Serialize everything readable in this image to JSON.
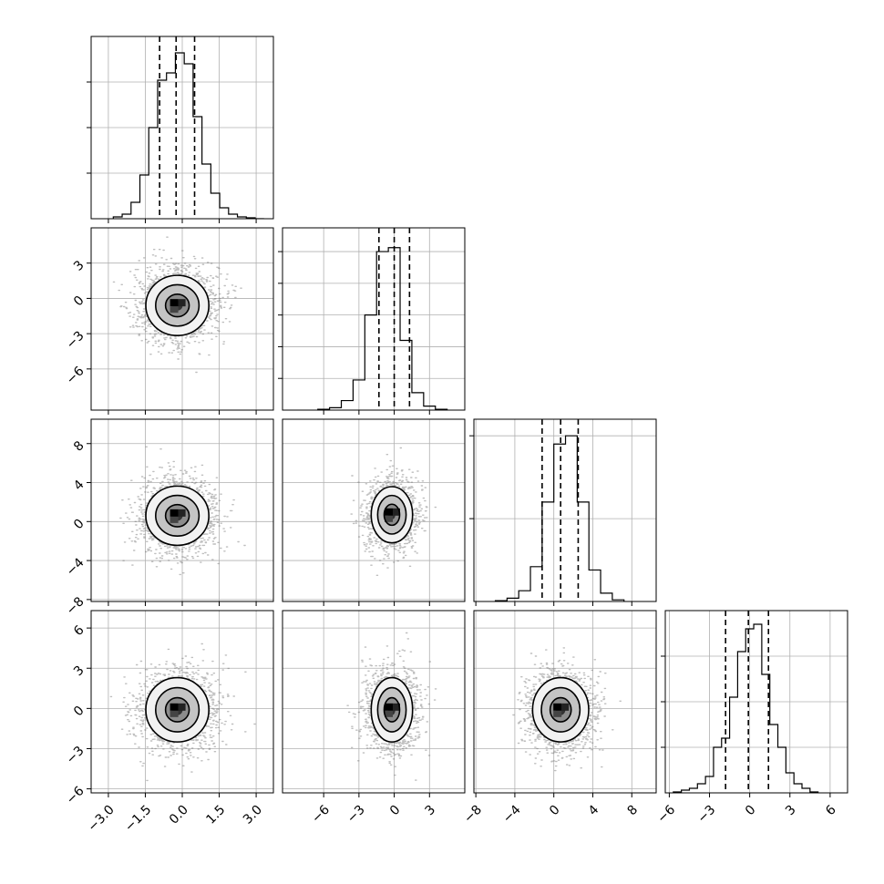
{
  "chart_data": {
    "type": "corner",
    "n_params": 4,
    "grid": true,
    "parameters": [
      {
        "range": [
          -3.7,
          3.7
        ],
        "ticks": [
          -3.0,
          -1.5,
          0.0,
          1.5,
          3.0
        ],
        "tick_labels": [
          "−3.0",
          "−1.5",
          "0.0",
          "1.5",
          "3.0"
        ],
        "quantiles": [
          -0.92,
          -0.25,
          0.5
        ],
        "hist": {
          "type": "histogram",
          "bin_edges": [
            -2.8,
            -2.44,
            -2.08,
            -1.72,
            -1.36,
            -1.0,
            -0.64,
            -0.28,
            0.08,
            0.44,
            0.8,
            1.16,
            1.52,
            1.88,
            2.24,
            2.6,
            2.96,
            3.32
          ],
          "counts": [
            2,
            5,
            18,
            48,
            100,
            152,
            160,
            182,
            170,
            112,
            60,
            28,
            12,
            5,
            2,
            1,
            0
          ],
          "ylim": [
            0,
            200
          ],
          "yticks": [
            50,
            100,
            150
          ]
        }
      },
      {
        "range": [
          -9.5,
          6.0
        ],
        "ticks": [
          -6,
          -3,
          0,
          3
        ],
        "tick_labels": [
          "−6",
          "−3",
          "0",
          "3"
        ],
        "quantiles": [
          -1.3,
          0.0,
          1.3
        ],
        "hist": {
          "type": "histogram",
          "bin_edges": [
            -6.5,
            -5.5,
            -4.5,
            -3.5,
            -2.5,
            -1.5,
            -0.5,
            0.5,
            1.5,
            2.5,
            3.5,
            4.5
          ],
          "counts": [
            1,
            3,
            12,
            38,
            120,
            200,
            205,
            88,
            22,
            5,
            1
          ],
          "ylim": [
            0,
            230
          ],
          "yticks": [
            40,
            80,
            120,
            160,
            200
          ]
        }
      },
      {
        "range": [
          -8.2,
          10.5
        ],
        "ticks": [
          -8,
          -4,
          0,
          4,
          8
        ],
        "tick_labels": [
          "−8",
          "−4",
          "0",
          "4",
          "8"
        ],
        "quantiles": [
          -1.2,
          0.7,
          2.5
        ],
        "hist": {
          "type": "histogram",
          "bin_edges": [
            -6.0,
            -4.8,
            -3.6,
            -2.4,
            -1.2,
            0.0,
            1.2,
            2.4,
            3.6,
            4.8,
            6.0,
            7.2
          ],
          "counts": [
            1,
            4,
            13,
            42,
            120,
            190,
            200,
            120,
            38,
            10,
            2
          ],
          "ylim": [
            0,
            220
          ],
          "yticks": [
            100,
            200
          ]
        }
      },
      {
        "range": [
          -6.3,
          7.3
        ],
        "ticks": [
          -6,
          -3,
          0,
          3,
          6
        ],
        "tick_labels": [
          "−6",
          "−3",
          "0",
          "3",
          "6"
        ],
        "quantiles": [
          -1.8,
          -0.1,
          1.4
        ],
        "hist": {
          "type": "histogram",
          "bin_edges": [
            -5.7,
            -5.1,
            -4.5,
            -3.9,
            -3.3,
            -2.7,
            -2.1,
            -1.5,
            -0.9,
            -0.3,
            0.3,
            0.9,
            1.5,
            2.1,
            2.7,
            3.3,
            3.9,
            4.5,
            5.1
          ],
          "counts": [
            1,
            3,
            5,
            10,
            18,
            50,
            60,
            105,
            155,
            180,
            185,
            130,
            75,
            50,
            22,
            10,
            5,
            1
          ],
          "ylim": [
            0,
            200
          ],
          "yticks": [
            50,
            100,
            150
          ]
        }
      }
    ],
    "pairs": [
      {
        "row": 1,
        "col": 0,
        "center": [
          -0.2,
          -0.6
        ],
        "sigma": [
          0.8,
          1.6
        ],
        "contour_levels_sigma": [
          0.6,
          1.1,
          1.6
        ]
      },
      {
        "row": 2,
        "col": 0,
        "center": [
          -0.2,
          0.6
        ],
        "sigma": [
          0.8,
          1.9
        ],
        "contour_levels_sigma": [
          0.6,
          1.1,
          1.6
        ]
      },
      {
        "row": 2,
        "col": 1,
        "center": [
          -0.2,
          0.7
        ],
        "sigma": [
          1.1,
          1.8
        ],
        "contour_levels_sigma": [
          0.6,
          1.1,
          1.6
        ]
      },
      {
        "row": 3,
        "col": 0,
        "center": [
          -0.2,
          -0.1
        ],
        "sigma": [
          0.8,
          1.5
        ],
        "contour_levels_sigma": [
          0.6,
          1.1,
          1.6
        ]
      },
      {
        "row": 3,
        "col": 1,
        "center": [
          -0.2,
          -0.1
        ],
        "sigma": [
          1.1,
          1.5
        ],
        "contour_levels_sigma": [
          0.6,
          1.1,
          1.6
        ]
      },
      {
        "row": 3,
        "col": 2,
        "center": [
          0.7,
          -0.1
        ],
        "sigma": [
          1.8,
          1.5
        ],
        "contour_levels_sigma": [
          0.6,
          1.1,
          1.6
        ]
      }
    ]
  }
}
